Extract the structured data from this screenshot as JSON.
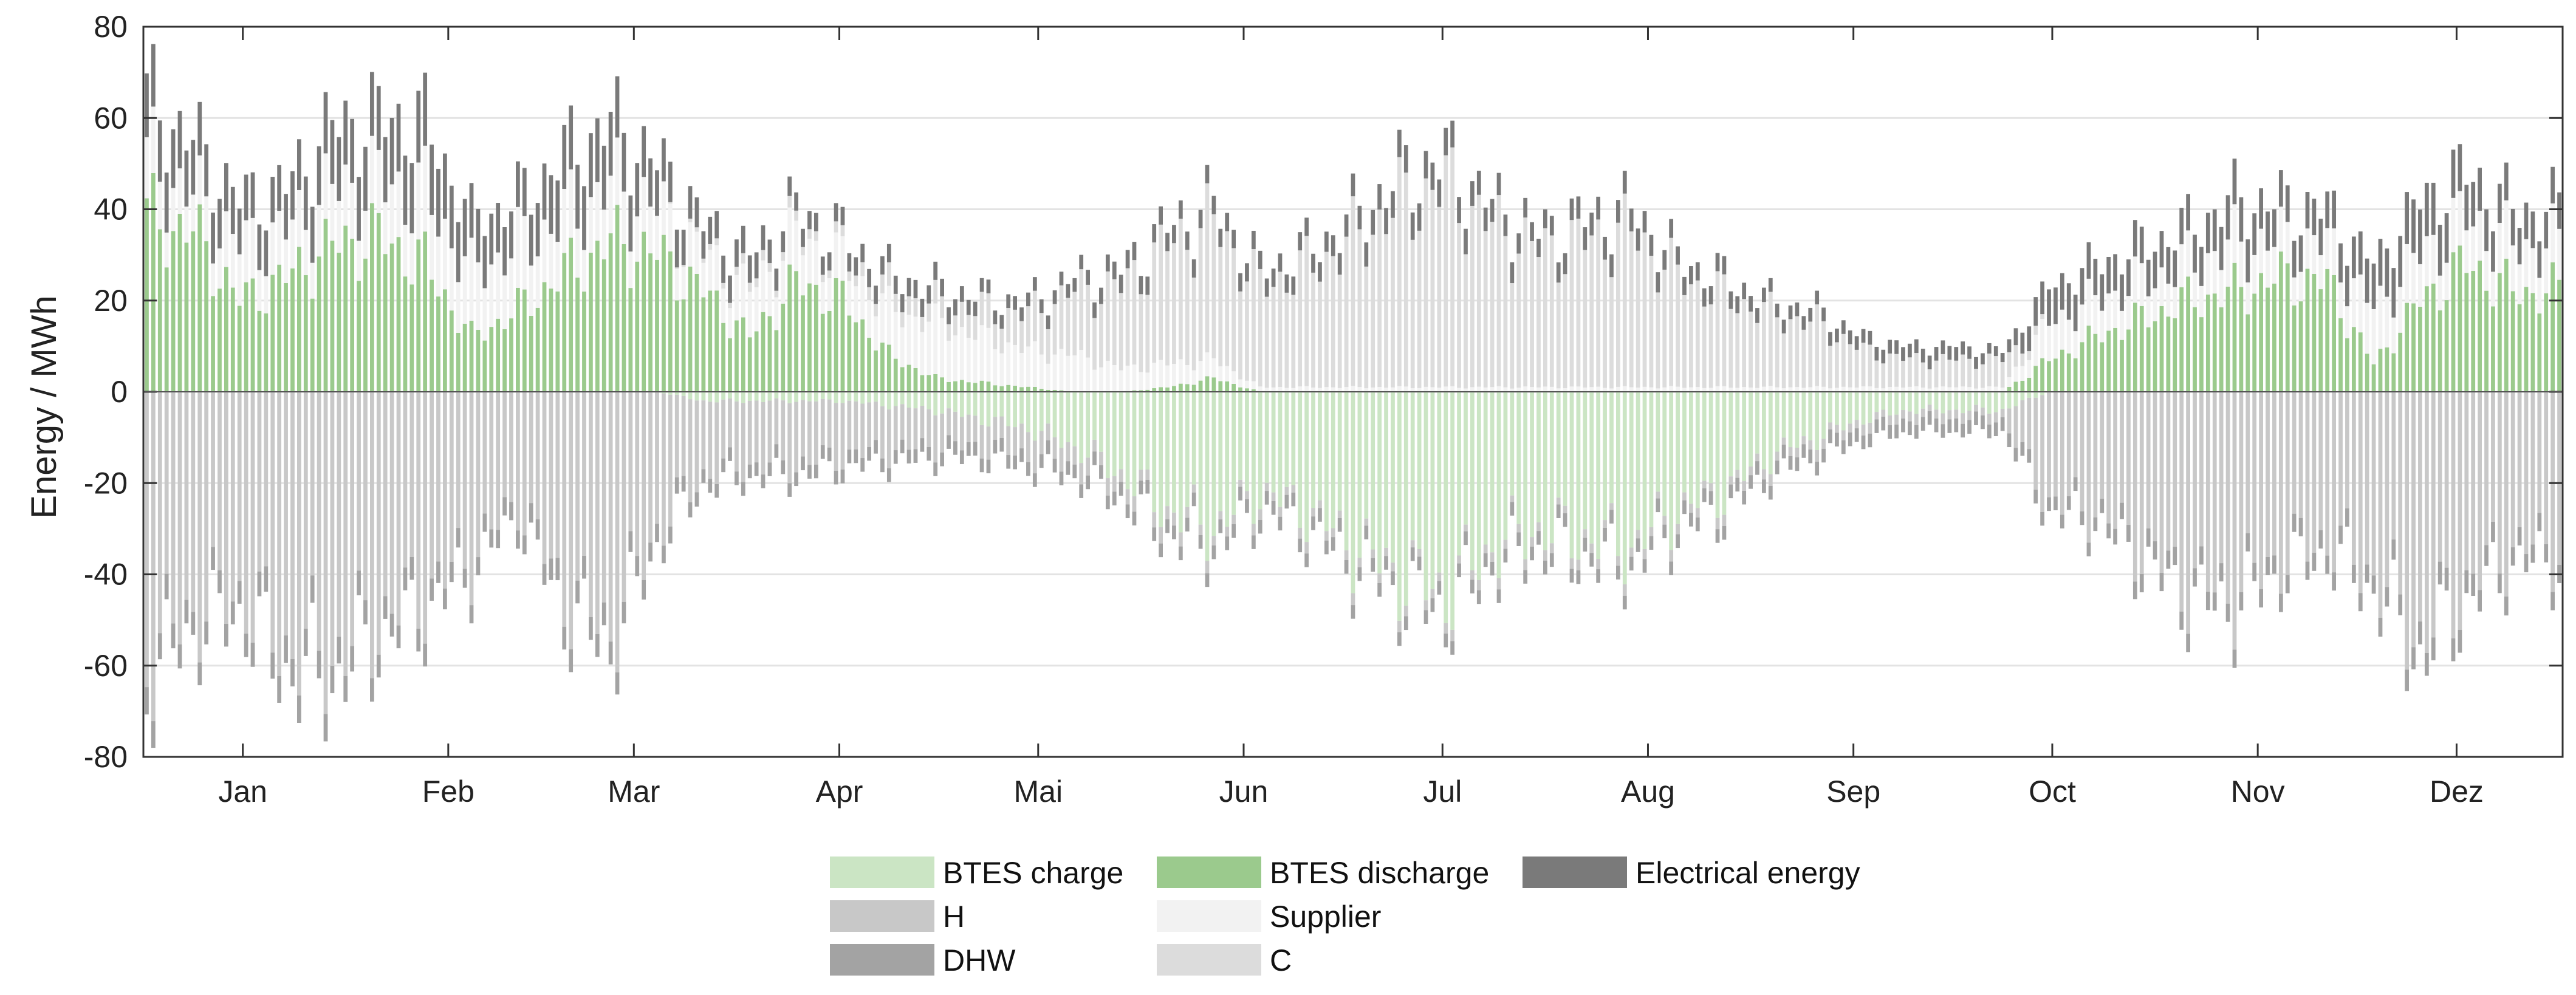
{
  "chart_data": {
    "type": "bar",
    "stacked": true,
    "title": "",
    "xlabel": "",
    "ylabel": "Energy / MWh",
    "ylim": [
      -80,
      80
    ],
    "yticks": [
      80,
      60,
      40,
      20,
      0,
      -20,
      -40,
      -60,
      -80
    ],
    "grid": true,
    "legend_position": "bottom-center",
    "months": [
      "Jan",
      "Feb",
      "Mar",
      "Apr",
      "Mai",
      "Jun",
      "Jul",
      "Aug",
      "Sep",
      "Oct",
      "Nov",
      "Dez"
    ],
    "weekly_supply": {
      "description": "Estimated weekly stacked supply (positive) read from the figure, week 1..52",
      "btes_discharge": [
        38,
        35,
        20,
        25,
        32,
        34,
        28,
        12,
        18,
        26,
        33,
        30,
        22,
        12,
        24,
        20,
        8,
        3,
        2,
        1,
        0,
        0,
        1,
        3,
        0,
        0,
        0,
        0,
        0,
        0,
        0,
        0,
        0,
        0,
        0,
        0,
        0,
        0,
        0,
        0,
        0,
        7,
        12,
        16,
        20,
        22,
        25,
        24,
        6,
        20,
        28,
        22
      ],
      "supplier": [
        12,
        8,
        12,
        10,
        12,
        12,
        15,
        14,
        14,
        12,
        12,
        10,
        8,
        10,
        10,
        8,
        10,
        12,
        10,
        8,
        8,
        5,
        5,
        4,
        1,
        1,
        1,
        1,
        1,
        1,
        1,
        1,
        1,
        1,
        1,
        1,
        1,
        1,
        1,
        1,
        1,
        8,
        8,
        8,
        8,
        10,
        8,
        8,
        12,
        10,
        10,
        10
      ],
      "cooling": [
        0,
        0,
        0,
        0,
        0,
        0,
        0,
        0,
        0,
        0,
        0,
        0,
        1,
        2,
        2,
        2,
        4,
        4,
        6,
        8,
        14,
        18,
        26,
        30,
        22,
        26,
        32,
        40,
        44,
        35,
        30,
        32,
        34,
        24,
        20,
        16,
        14,
        8,
        6,
        6,
        6,
        0,
        0,
        0,
        0,
        0,
        0,
        0,
        0,
        0,
        0,
        0
      ],
      "electrical_energy": [
        14,
        12,
        10,
        10,
        14,
        14,
        16,
        12,
        10,
        14,
        14,
        10,
        6,
        6,
        4,
        4,
        4,
        4,
        3,
        3,
        3,
        4,
        4,
        4,
        4,
        4,
        5,
        6,
        6,
        5,
        4,
        5,
        5,
        4,
        4,
        3,
        3,
        3,
        3,
        3,
        2,
        8,
        8,
        8,
        8,
        10,
        8,
        8,
        10,
        12,
        10,
        8
      ]
    },
    "weekly_demand": {
      "description": "Estimated weekly stacked demand (negative) read from the figure, week 1..52",
      "heating": [
        -58,
        -48,
        -44,
        -56,
        -58,
        -50,
        -44,
        -36,
        -24,
        -44,
        -52,
        -30,
        -16,
        -14,
        -14,
        -12,
        -10,
        -8,
        -6,
        -6,
        -4,
        -3,
        -3,
        -2,
        -2,
        -2,
        -2,
        -2,
        -2,
        -2,
        -2,
        -2,
        -2,
        -2,
        -2,
        -2,
        -2,
        -2,
        -2,
        -2,
        -2,
        -24,
        -26,
        -34,
        -42,
        -44,
        -36,
        -32,
        -40,
        -54,
        -42,
        -34
      ],
      "dhw": [
        -6,
        -5,
        -5,
        -6,
        -6,
        -5,
        -5,
        -4,
        -4,
        -5,
        -5,
        -4,
        -3,
        -3,
        -3,
        -3,
        -3,
        -3,
        -3,
        -3,
        -3,
        -3,
        -3,
        -3,
        -3,
        -3,
        -3,
        -3,
        -3,
        -3,
        -3,
        -3,
        -3,
        -3,
        -3,
        -3,
        -3,
        -3,
        -3,
        -3,
        -3,
        -3,
        -3,
        -4,
        -4,
        -4,
        -4,
        -4,
        -4,
        -5,
        -5,
        -4
      ],
      "btes_charge": [
        0,
        0,
        0,
        0,
        0,
        0,
        0,
        0,
        0,
        0,
        0,
        0,
        -2,
        -2,
        -2,
        -2,
        -3,
        -4,
        -6,
        -8,
        -12,
        -18,
        -26,
        -30,
        -22,
        -26,
        -34,
        -40,
        -44,
        -34,
        -30,
        -32,
        -34,
        -26,
        -22,
        -14,
        -10,
        -6,
        -4,
        -4,
        -4,
        0,
        0,
        0,
        0,
        0,
        0,
        0,
        0,
        0,
        0,
        0
      ]
    },
    "series": [
      {
        "name": "BTES charge",
        "color": "#cbe5c4"
      },
      {
        "name": "BTES discharge",
        "color": "#9bca8d"
      },
      {
        "name": "Electrical energy",
        "color": "#7a7a7a"
      },
      {
        "name": "H",
        "color": "#c8c8c8"
      },
      {
        "name": "Supplier",
        "color": "#f2f2f2"
      },
      {
        "name": "DHW",
        "color": "#a3a3a3"
      },
      {
        "name": "C",
        "color": "#dcdcdc"
      }
    ]
  }
}
